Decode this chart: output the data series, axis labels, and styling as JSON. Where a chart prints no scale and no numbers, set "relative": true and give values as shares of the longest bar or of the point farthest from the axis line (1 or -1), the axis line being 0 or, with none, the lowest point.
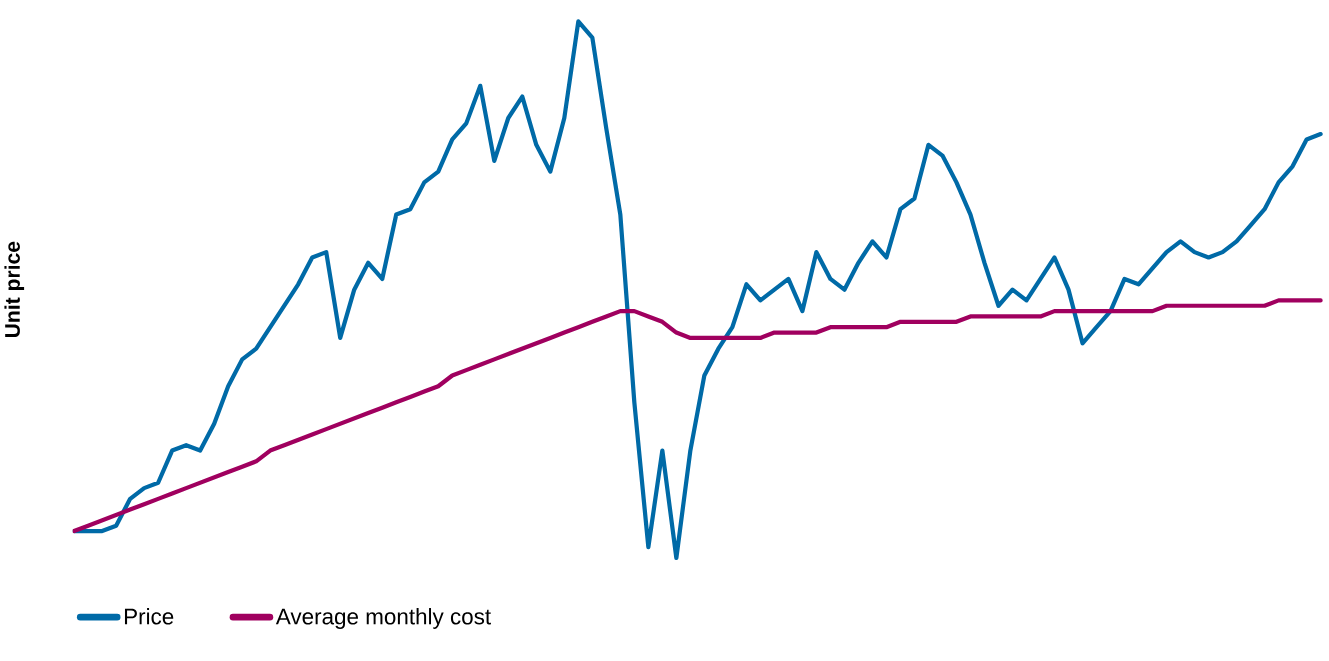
{
  "chart_data": {
    "type": "line",
    "ylabel": "Unit price",
    "relative": true,
    "legend": "bottom",
    "marker": "none",
    "line_style": "solid",
    "categories": [
      null,
      null,
      null,
      null,
      null,
      null,
      null,
      null,
      null,
      null,
      null,
      null,
      null,
      null,
      null,
      null,
      null,
      null,
      null,
      null,
      null,
      null,
      null,
      null,
      null,
      null,
      null,
      null,
      null,
      null,
      null,
      null,
      null,
      null,
      null,
      null,
      null,
      null,
      null,
      null,
      null,
      null,
      null,
      null,
      null,
      null,
      null,
      null,
      null,
      null,
      null,
      null,
      null,
      null,
      null,
      null,
      null,
      null,
      null,
      null,
      null,
      null,
      null,
      null,
      null,
      null,
      null,
      null,
      null,
      null,
      null,
      null,
      null,
      null,
      null,
      null,
      null,
      null,
      null,
      null,
      null,
      null,
      null,
      null,
      null,
      null,
      null,
      null,
      null,
      null
    ],
    "series": [
      {
        "name": "Price",
        "color": "#006aa7",
        "values": [
          0.05,
          0.05,
          0.05,
          0.06,
          0.11,
          0.13,
          0.14,
          0.2,
          0.21,
          0.2,
          0.25,
          0.32,
          0.37,
          0.39,
          0.43,
          0.47,
          0.51,
          0.56,
          0.57,
          0.41,
          0.5,
          0.55,
          0.52,
          0.64,
          0.65,
          0.7,
          0.72,
          0.78,
          0.81,
          0.88,
          0.74,
          0.82,
          0.86,
          0.77,
          0.72,
          0.82,
          1,
          0.97,
          0.8,
          0.64,
          0.29,
          0.02,
          0.2,
          0,
          0.2,
          0.34,
          0.39,
          0.43,
          0.51,
          0.48,
          0.5,
          0.52,
          0.46,
          0.57,
          0.52,
          0.5,
          0.55,
          0.59,
          0.56,
          0.65,
          0.67,
          0.77,
          0.75,
          0.7,
          0.64,
          0.55,
          0.47,
          0.5,
          0.48,
          0.52,
          0.56,
          0.5,
          0.4,
          0.43,
          0.46,
          0.52,
          0.51,
          0.54,
          0.57,
          0.59,
          0.57,
          0.56,
          0.57,
          0.59,
          0.62,
          0.65,
          0.7,
          0.73,
          0.78,
          0.79
        ]
      },
      {
        "name": "Average monthly cost",
        "color": "#a0005f",
        "values": [
          0.05,
          0.06,
          0.07,
          0.08,
          0.09,
          0.1,
          0.11,
          0.12,
          0.13,
          0.14,
          0.15,
          0.16,
          0.17,
          0.18,
          0.2,
          0.21,
          0.22,
          0.23,
          0.24,
          0.25,
          0.26,
          0.27,
          0.28,
          0.29,
          0.3,
          0.31,
          0.32,
          0.34,
          0.35,
          0.36,
          0.37,
          0.38,
          0.39,
          0.4,
          0.41,
          0.42,
          0.43,
          0.44,
          0.45,
          0.46,
          0.46,
          0.45,
          0.44,
          0.42,
          0.41,
          0.41,
          0.41,
          0.41,
          0.41,
          0.41,
          0.42,
          0.42,
          0.42,
          0.42,
          0.43,
          0.43,
          0.43,
          0.43,
          0.43,
          0.44,
          0.44,
          0.44,
          0.44,
          0.44,
          0.45,
          0.45,
          0.45,
          0.45,
          0.45,
          0.45,
          0.46,
          0.46,
          0.46,
          0.46,
          0.46,
          0.46,
          0.46,
          0.46,
          0.47,
          0.47,
          0.47,
          0.47,
          0.47,
          0.47,
          0.47,
          0.47,
          0.48,
          0.48,
          0.48,
          0.48
        ]
      }
    ]
  }
}
